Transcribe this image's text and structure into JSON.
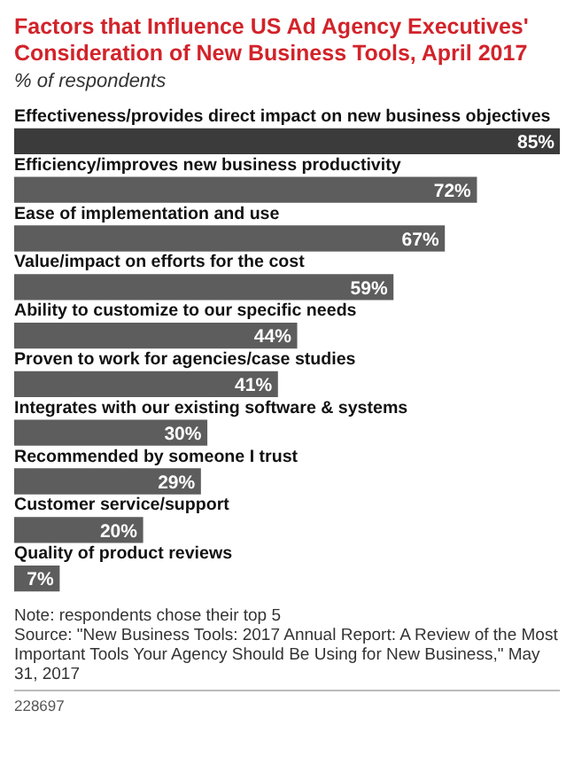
{
  "chart_data": {
    "type": "bar",
    "orientation": "horizontal",
    "title": "Factors that Influence US Ad Agency Executives' Consideration of New Business Tools, April 2017",
    "subtitle": "% of respondents",
    "categories": [
      "Effectiveness/provides direct impact on new business objectives",
      "Efficiency/improves new business productivity",
      "Ease of implementation and use",
      "Value/impact on efforts for the cost",
      "Ability to customize to our specific needs",
      "Proven to work for agencies/case studies",
      "Integrates with our existing software & systems",
      "Recommended by someone I trust",
      "Customer service/support",
      "Quality of product reviews"
    ],
    "values": [
      85,
      72,
      67,
      59,
      44,
      41,
      30,
      29,
      20,
      7
    ],
    "value_labels": [
      "85%",
      "72%",
      "67%",
      "59%",
      "44%",
      "41%",
      "30%",
      "29%",
      "20%",
      "7%"
    ],
    "colors": [
      "#3b3b3b",
      "#5d5d5d",
      "#5d5d5d",
      "#5d5d5d",
      "#5d5d5d",
      "#5d5d5d",
      "#5d5d5d",
      "#5d5d5d",
      "#5d5d5d",
      "#5d5d5d"
    ],
    "annotations": [
      "Note: respondents chose their top 5",
      "Source: \"New Business Tools: 2017 Annual Report: A Review of the Most Important Tools Your Agency Should Be Using for New Business,\" May 31, 2017",
      "228697"
    ]
  }
}
